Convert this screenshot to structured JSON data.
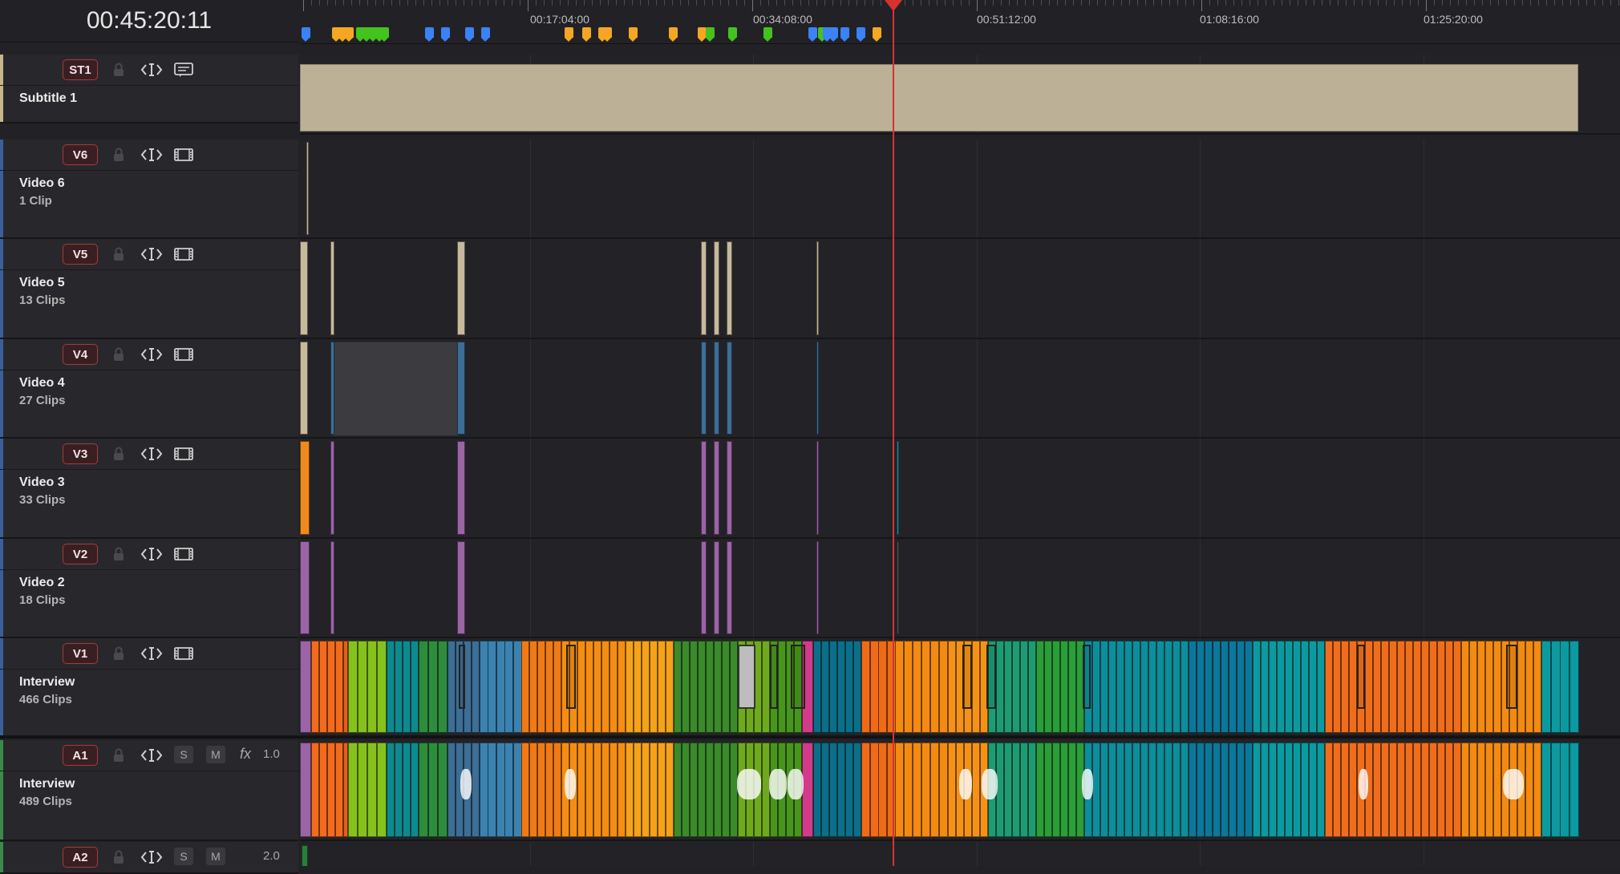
{
  "timecode": "00:45:20:11",
  "ruler": {
    "labels": [
      "00:17:04:00",
      "00:34:08:00",
      "00:51:12:00",
      "01:08:16:00",
      "01:25:20:00"
    ]
  },
  "tracks": [
    {
      "id": "ST1",
      "name": "Subtitle 1",
      "count": "",
      "kind": "subtitle"
    },
    {
      "id": "V6",
      "name": "Video 6",
      "count": "1 Clip",
      "kind": "video"
    },
    {
      "id": "V5",
      "name": "Video 5",
      "count": "13 Clips",
      "kind": "video"
    },
    {
      "id": "V4",
      "name": "Video 4",
      "count": "27 Clips",
      "kind": "video"
    },
    {
      "id": "V3",
      "name": "Video 3",
      "count": "33 Clips",
      "kind": "video"
    },
    {
      "id": "V2",
      "name": "Video 2",
      "count": "18 Clips",
      "kind": "video"
    },
    {
      "id": "V1",
      "name": "Interview",
      "count": "466 Clips",
      "kind": "video"
    },
    {
      "id": "A1",
      "name": "Interview",
      "count": "489 Clips",
      "kind": "audio",
      "solo": "S",
      "mute": "M",
      "fx": "fx",
      "volume": "1.0"
    },
    {
      "id": "A2",
      "name": "",
      "count": "",
      "kind": "audio",
      "solo": "S",
      "mute": "M",
      "volume": "2.0"
    }
  ],
  "colors": {
    "playhead": "#d8322f",
    "subtitle_clip": "#bdb196",
    "clip_tan": "#c6b99c",
    "clip_blue": "#3d6e95",
    "clip_purple": "#9b64a6",
    "clip_orange": "#f08a1e",
    "clip_teal": "#0a9aa0",
    "clip_green": "#7fc21a"
  },
  "marker_colors": [
    "#3b82f6",
    "#f5a623",
    "#44c21e"
  ],
  "icons": {
    "lock": "lock-icon",
    "auto_select": "auto-select-icon",
    "subtitle": "subtitle-track-icon",
    "film": "film-strip-icon"
  }
}
